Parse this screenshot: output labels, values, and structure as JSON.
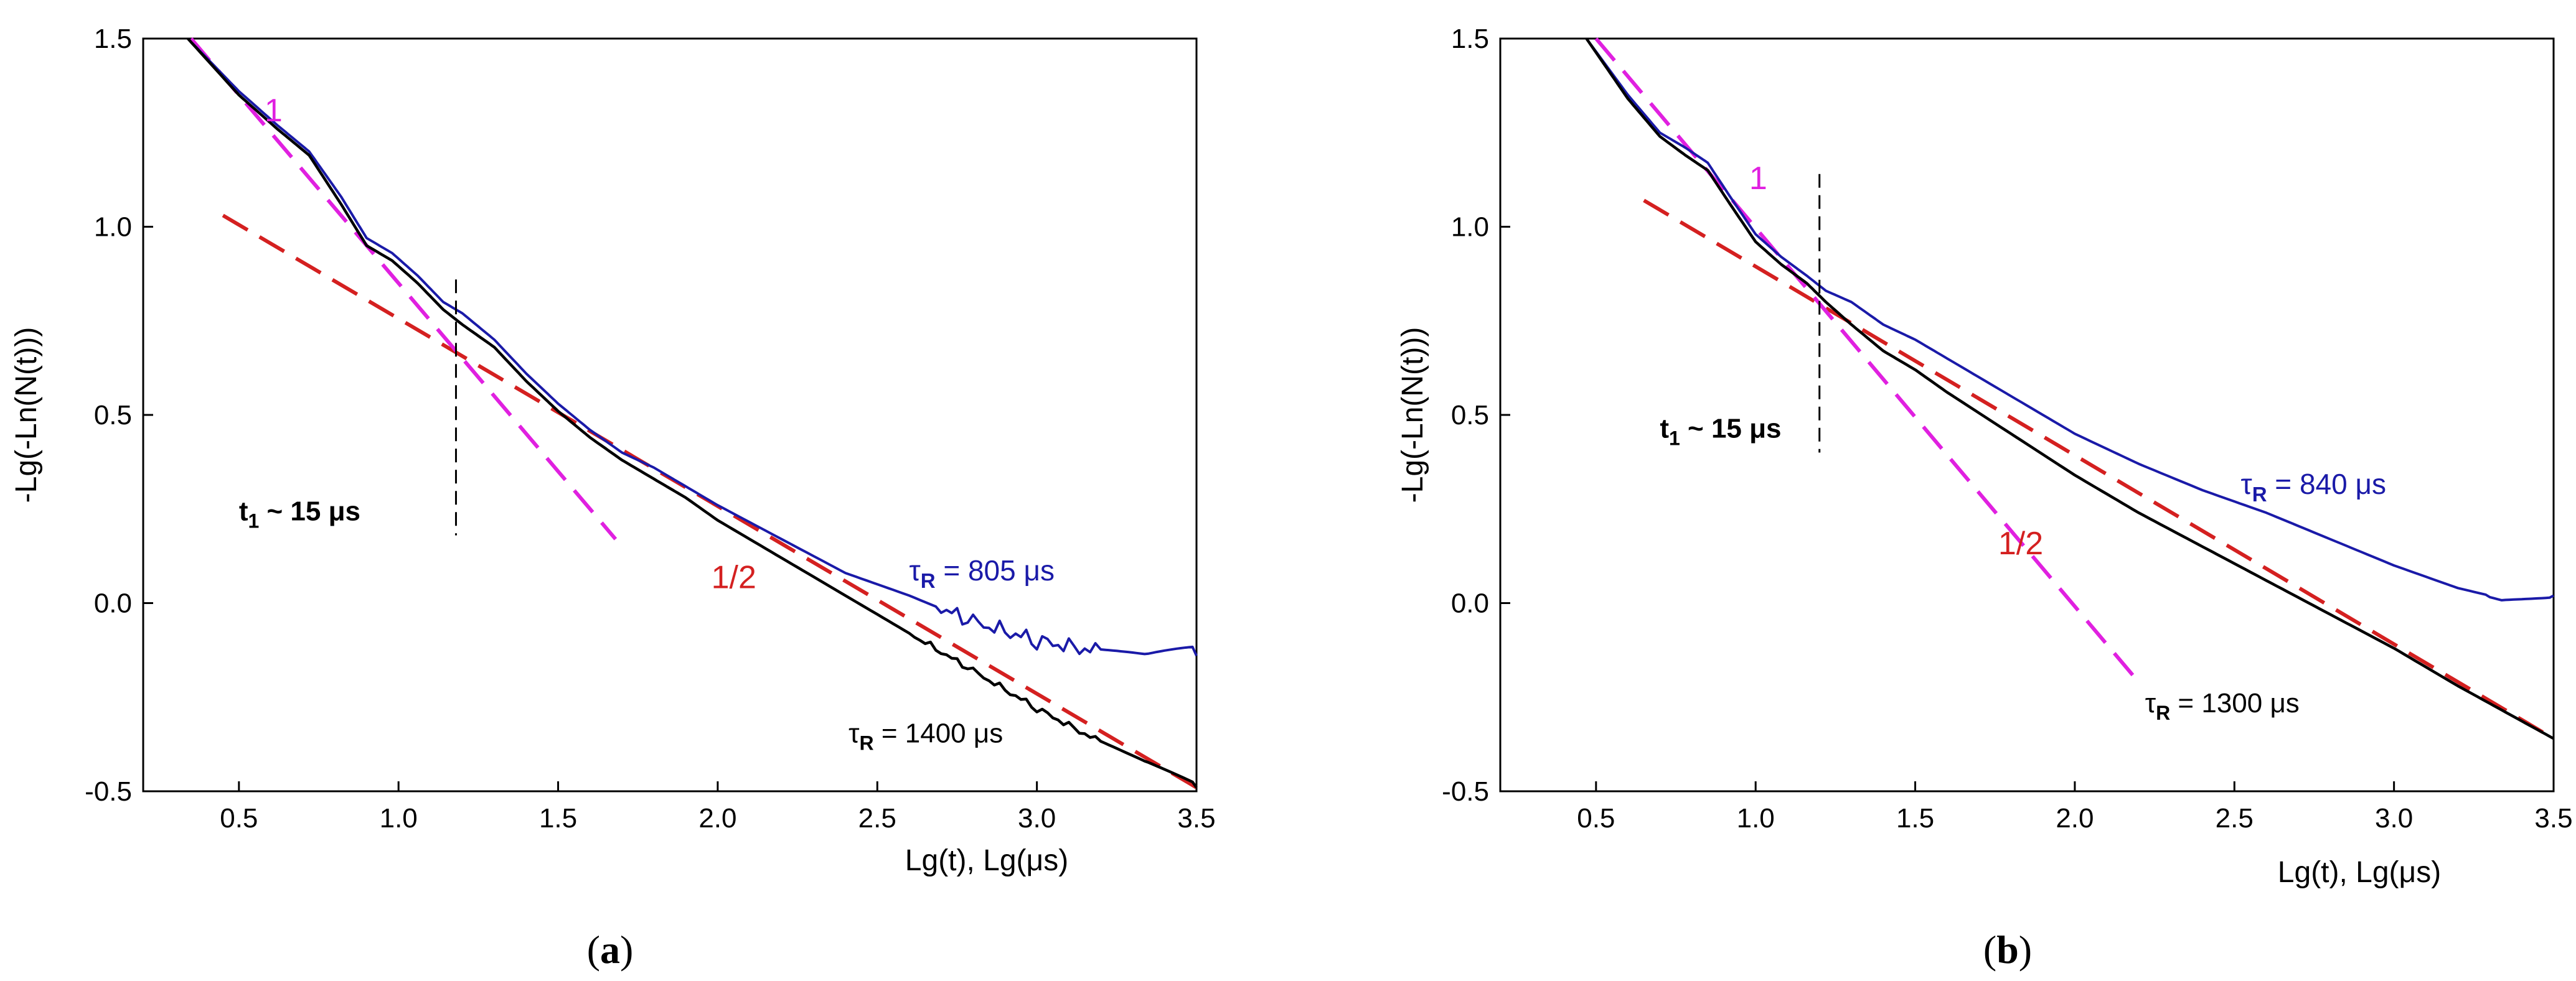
{
  "chart_data": [
    {
      "type": "line",
      "panel": "a",
      "caption_open": "(",
      "caption_letter": "a",
      "caption_close": ")",
      "xlabel": "Lg(t), Lg(μs)",
      "ylabel": "-Lg(-Ln(N(t)))",
      "xlim": [
        0.2,
        3.5
      ],
      "ylim": [
        -0.5,
        1.5
      ],
      "x_ticks": [
        0.5,
        1.0,
        1.5,
        2.0,
        2.5,
        3.0,
        3.5
      ],
      "x_tick_labels": [
        "0.5",
        "1.0",
        "1.5",
        "2.0",
        "2.5",
        "3.0",
        "3.5"
      ],
      "y_ticks": [
        -0.5,
        0.0,
        0.5,
        1.0,
        1.5
      ],
      "y_tick_labels": [
        "-0.5",
        "0.0",
        "0.5",
        "1.0",
        "1.5"
      ],
      "colors": {
        "blue": "#1a1aa8",
        "black": "#000000",
        "red": "#d42020",
        "magenta": "#e020e0"
      },
      "series": [
        {
          "name": "τR = 805 μs",
          "color": "#1a1aa8",
          "noisy_from": 2.7,
          "noise_amp": 0.025,
          "x": [
            0.34,
            0.5,
            0.62,
            0.72,
            0.82,
            0.9,
            0.98,
            1.06,
            1.14,
            1.2,
            1.3,
            1.4,
            1.5,
            1.6,
            1.7,
            1.8,
            1.9,
            2.0,
            2.2,
            2.4,
            2.6,
            2.8,
            3.0,
            3.2,
            3.35,
            3.5
          ],
          "y": [
            1.5,
            1.36,
            1.27,
            1.2,
            1.08,
            0.97,
            0.93,
            0.87,
            0.8,
            0.77,
            0.7,
            0.61,
            0.53,
            0.46,
            0.4,
            0.36,
            0.31,
            0.26,
            0.17,
            0.08,
            0.02,
            -0.05,
            -0.1,
            -0.13,
            -0.15,
            -0.14
          ]
        },
        {
          "name": "τR = 1400 μs",
          "color": "#000000",
          "noisy_from": 2.6,
          "noise_amp": 0.01,
          "x": [
            0.34,
            0.5,
            0.62,
            0.72,
            0.82,
            0.9,
            0.98,
            1.06,
            1.14,
            1.2,
            1.3,
            1.4,
            1.5,
            1.6,
            1.7,
            1.8,
            1.9,
            2.0,
            2.2,
            2.4,
            2.6,
            2.8,
            3.0,
            3.2,
            3.35,
            3.5
          ],
          "y": [
            1.5,
            1.35,
            1.26,
            1.19,
            1.06,
            0.95,
            0.91,
            0.85,
            0.78,
            0.74,
            0.68,
            0.59,
            0.51,
            0.44,
            0.38,
            0.33,
            0.28,
            0.22,
            0.12,
            0.02,
            -0.08,
            -0.18,
            -0.28,
            -0.37,
            -0.43,
            -0.49
          ]
        }
      ],
      "fit_lines": [
        {
          "name": "1/2",
          "color": "#d42020",
          "x": [
            0.45,
            3.5
          ],
          "y": [
            1.03,
            -0.49
          ]
        },
        {
          "name": "1",
          "color": "#e020e0",
          "x": [
            0.35,
            1.68
          ],
          "y": [
            1.5,
            0.17
          ]
        }
      ],
      "marker": {
        "x": 1.18,
        "y": [
          0.86,
          0.18
        ]
      },
      "annotations": [
        {
          "text": "1",
          "color": "#e020e0",
          "x": 0.58,
          "y": 1.28,
          "size": 52,
          "bold": false
        },
        {
          "text": "1/2",
          "color": "#d42020",
          "x": 1.98,
          "y": 0.04,
          "size": 52,
          "bold": false
        },
        {
          "text": "t1 ~ 15 μs",
          "main": "t",
          "sub": "1",
          "rest": " ~ 15 μs",
          "color": "#000000",
          "x": 0.5,
          "y": 0.22,
          "size": 44,
          "bold": true
        },
        {
          "text": "τR = 805 μs",
          "main": "τ",
          "sub": "R",
          "rest": " = 805 μs",
          "color": "#1a1aa8",
          "x": 2.6,
          "y": 0.06,
          "size": 46,
          "bold": false
        },
        {
          "text": "τR = 1400 μs",
          "main": "τ",
          "sub": "R",
          "rest": " = 1400 μs",
          "color": "#000000",
          "x": 2.41,
          "y": -0.37,
          "size": 44,
          "bold": false
        }
      ]
    },
    {
      "type": "line",
      "panel": "b",
      "caption_open": "(",
      "caption_letter": "b",
      "caption_close": ")",
      "xlabel": "Lg(t), Lg(μs)",
      "ylabel": "-Lg(-Ln(N(t)))",
      "xlim": [
        0.2,
        3.5
      ],
      "ylim": [
        -0.5,
        1.5
      ],
      "x_ticks": [
        0.5,
        1.0,
        1.5,
        2.0,
        2.5,
        3.0,
        3.5
      ],
      "x_tick_labels": [
        "0.5",
        "1.0",
        "1.5",
        "2.0",
        "2.5",
        "3.0",
        "3.5"
      ],
      "y_ticks": [
        -0.5,
        0.0,
        0.5,
        1.0,
        1.5
      ],
      "y_tick_labels": [
        "-0.5",
        "0.0",
        "0.5",
        "1.0",
        "1.5"
      ],
      "colors": {
        "blue": "#1a1aa8",
        "black": "#000000",
        "red": "#d42020",
        "magenta": "#e020e0"
      },
      "series": [
        {
          "name": "τR = 840 μs",
          "color": "#1a1aa8",
          "noisy_from": 3.3,
          "noise_amp": 0.006,
          "x": [
            0.47,
            0.6,
            0.7,
            0.78,
            0.85,
            0.92,
            1.0,
            1.08,
            1.16,
            1.22,
            1.3,
            1.4,
            1.5,
            1.6,
            1.8,
            2.0,
            2.2,
            2.4,
            2.6,
            2.8,
            3.0,
            3.2,
            3.35,
            3.5
          ],
          "y": [
            1.5,
            1.35,
            1.25,
            1.21,
            1.17,
            1.08,
            0.98,
            0.92,
            0.87,
            0.83,
            0.8,
            0.74,
            0.7,
            0.65,
            0.55,
            0.45,
            0.37,
            0.3,
            0.24,
            0.17,
            0.1,
            0.04,
            0.01,
            0.02
          ]
        },
        {
          "name": "τR = 1300 μs",
          "color": "#000000",
          "noisy_from": 9,
          "noise_amp": 0,
          "x": [
            0.47,
            0.6,
            0.7,
            0.78,
            0.85,
            0.92,
            1.0,
            1.08,
            1.16,
            1.22,
            1.3,
            1.4,
            1.5,
            1.6,
            1.8,
            2.0,
            2.2,
            2.4,
            2.6,
            2.8,
            3.0,
            3.2,
            3.35,
            3.5
          ],
          "y": [
            1.5,
            1.34,
            1.24,
            1.19,
            1.15,
            1.06,
            0.96,
            0.9,
            0.85,
            0.8,
            0.74,
            0.67,
            0.62,
            0.56,
            0.45,
            0.34,
            0.24,
            0.15,
            0.06,
            -0.03,
            -0.12,
            -0.22,
            -0.29,
            -0.36
          ]
        }
      ],
      "fit_lines": [
        {
          "name": "1/2",
          "color": "#d42020",
          "x": [
            0.65,
            3.5
          ],
          "y": [
            1.07,
            -0.36
          ]
        },
        {
          "name": "1",
          "color": "#e020e0",
          "x": [
            0.5,
            2.2
          ],
          "y": [
            1.5,
            -0.21
          ]
        }
      ],
      "marker": {
        "x": 1.2,
        "y": [
          1.14,
          0.4
        ]
      },
      "annotations": [
        {
          "text": "1",
          "color": "#e020e0",
          "x": 0.98,
          "y": 1.1,
          "size": 52,
          "bold": false
        },
        {
          "text": "1/2",
          "color": "#d42020",
          "x": 1.76,
          "y": 0.13,
          "size": 52,
          "bold": false
        },
        {
          "text": "t1 ~ 15 μs",
          "main": "t",
          "sub": "1",
          "rest": " ~ 15 μs",
          "color": "#000000",
          "x": 0.7,
          "y": 0.44,
          "size": 44,
          "bold": true
        },
        {
          "text": "τR = 840 μs",
          "main": "τ",
          "sub": "R",
          "rest": " = 840 μs",
          "color": "#1a1aa8",
          "x": 2.52,
          "y": 0.29,
          "size": 46,
          "bold": false
        },
        {
          "text": "τR = 1300 μs",
          "main": "τ",
          "sub": "R",
          "rest": " = 1300 μs",
          "color": "#000000",
          "x": 2.22,
          "y": -0.29,
          "size": 44,
          "bold": false
        }
      ]
    }
  ]
}
